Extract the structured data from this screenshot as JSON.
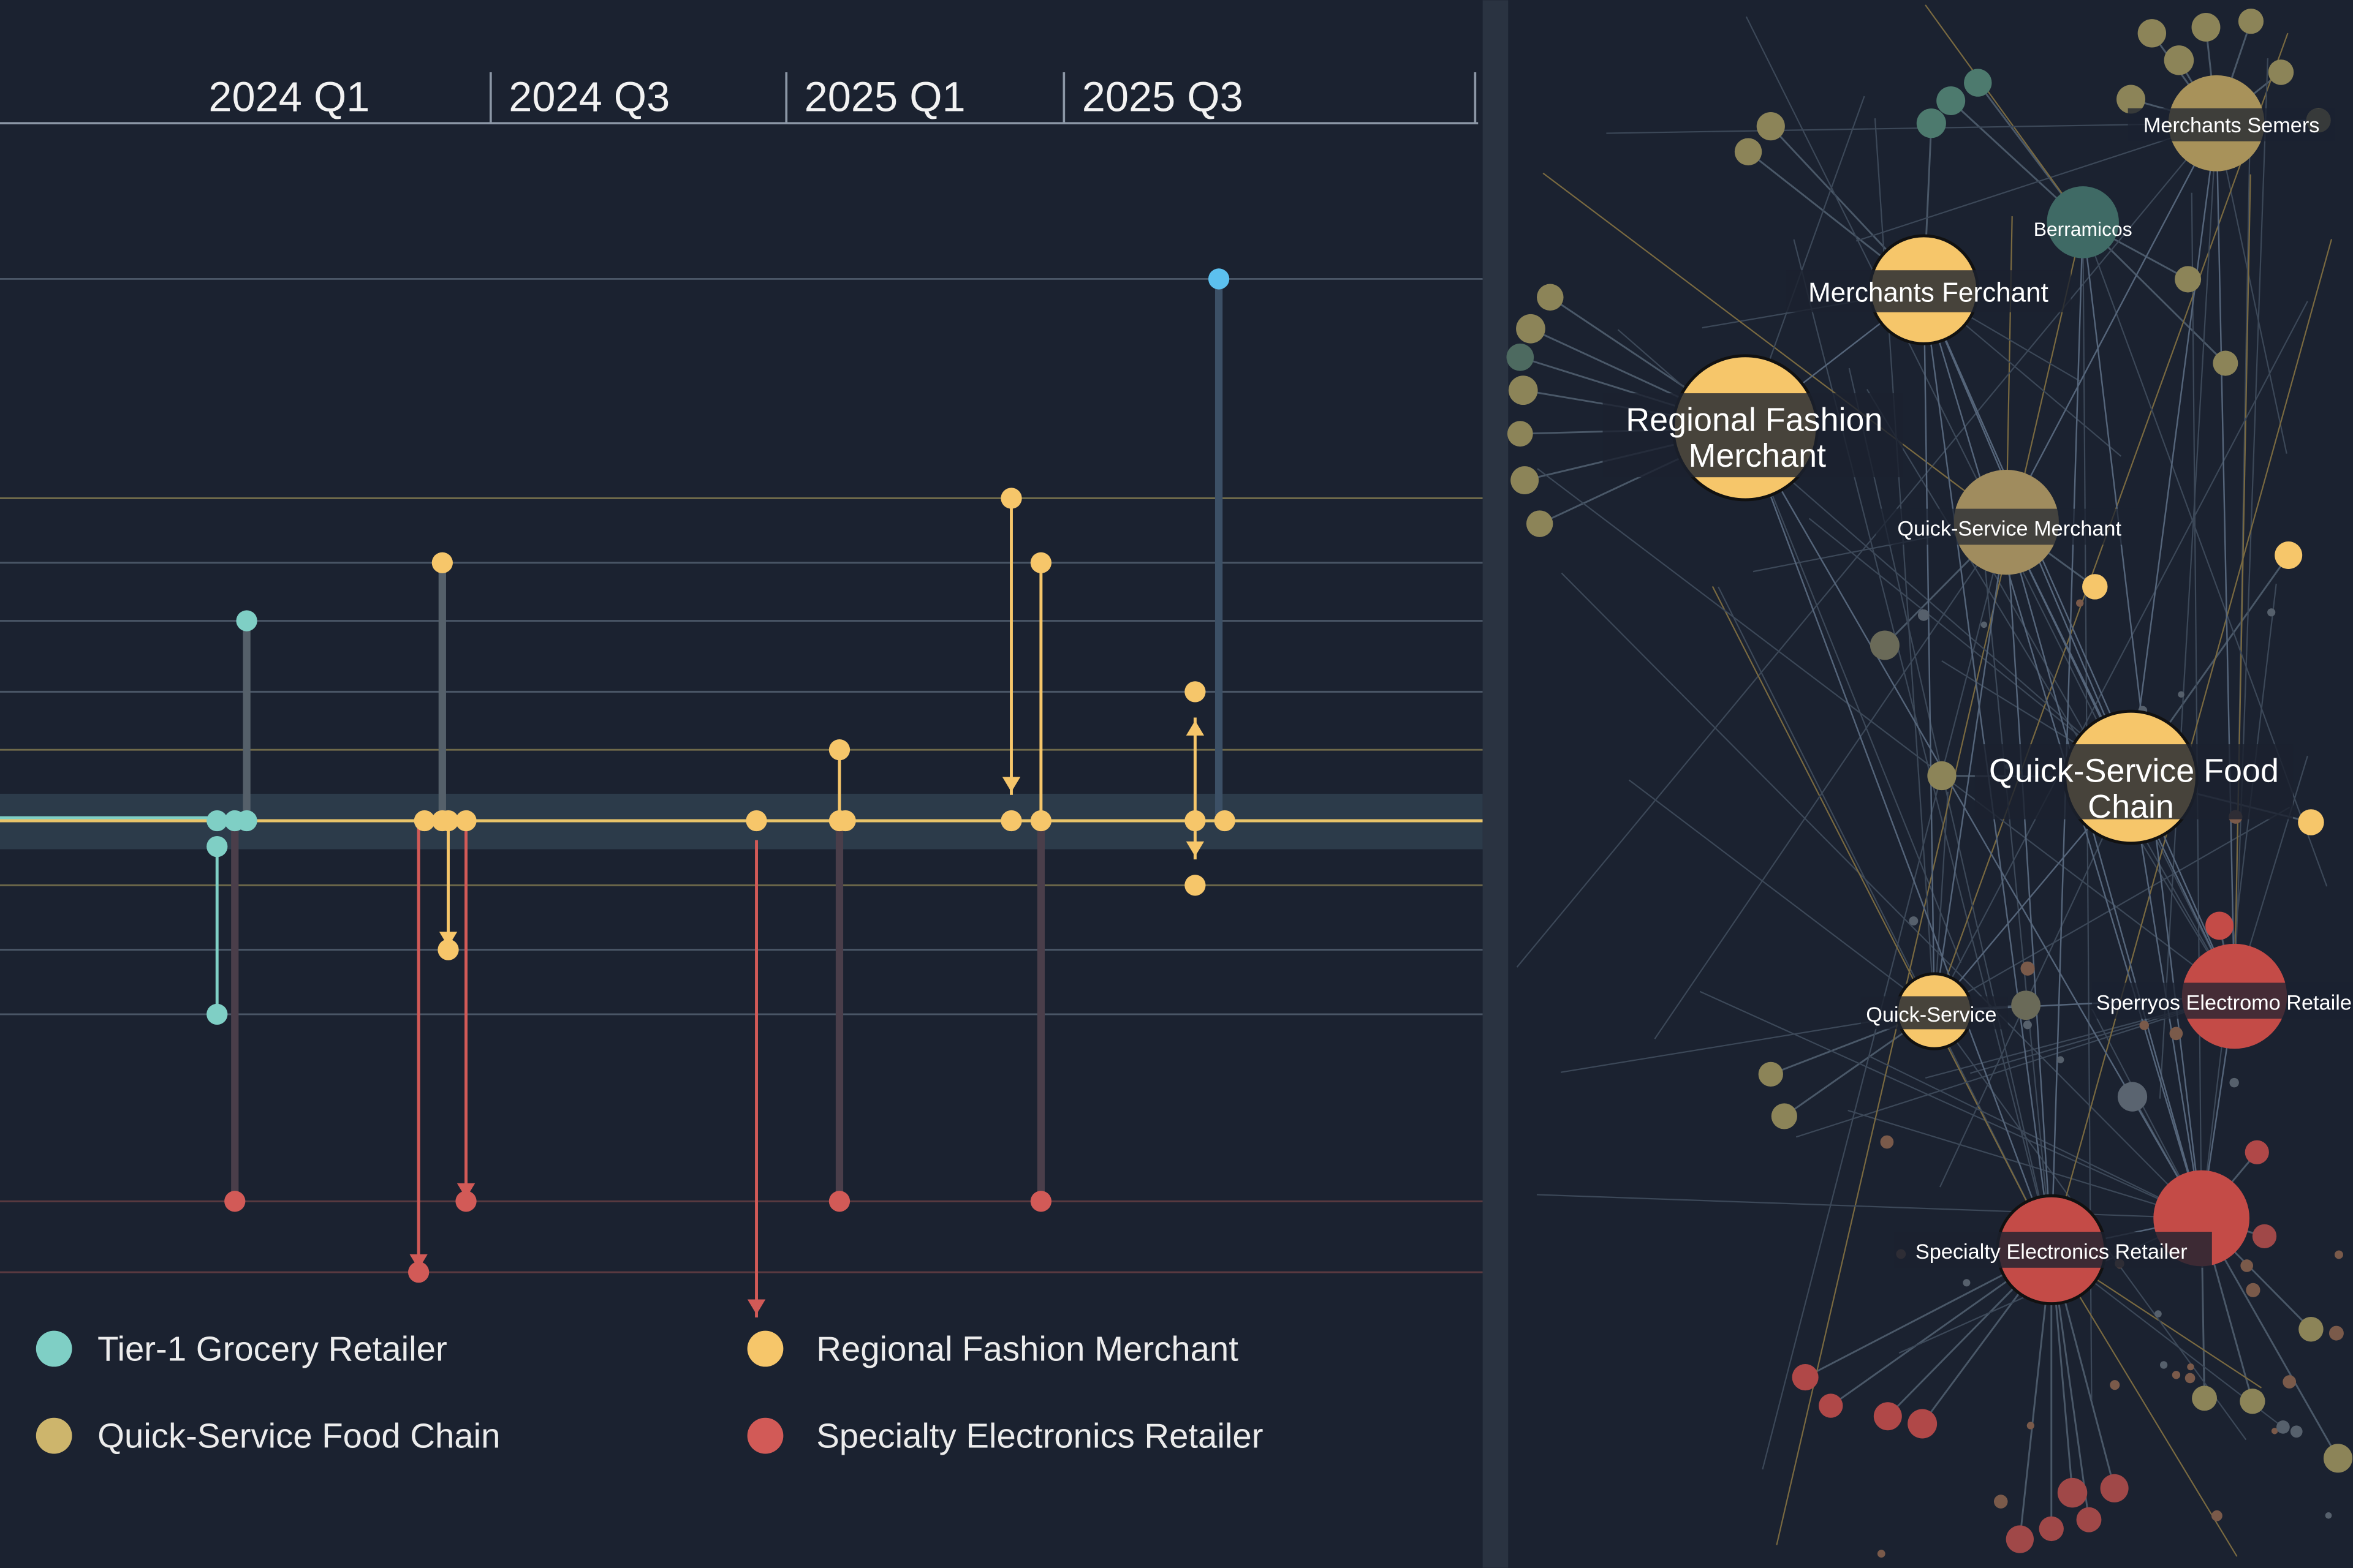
{
  "chart_data": {
    "type": "timeline-lollipop",
    "time_ticks": [
      "2024 Q1",
      "2024 Q3",
      "2025 Q1",
      "2025 Q3"
    ],
    "tick_times": [
      2024.0,
      2024.5,
      2025.0,
      2025.5
    ],
    "baseline": 0,
    "gridlines": [
      {
        "value": 8.4,
        "tone": "gray"
      },
      {
        "value": 5.0,
        "tone": "olive"
      },
      {
        "value": 4.0,
        "tone": "gray"
      },
      {
        "value": 3.1,
        "tone": "gray"
      },
      {
        "value": 2.0,
        "tone": "gray"
      },
      {
        "value": 1.1,
        "tone": "olive"
      },
      {
        "value": -1.0,
        "tone": "olive"
      },
      {
        "value": -2.0,
        "tone": "gray"
      },
      {
        "value": -3.0,
        "tone": "gray"
      },
      {
        "value": -5.9,
        "tone": "red"
      },
      {
        "value": -7.0,
        "tone": "red"
      }
    ],
    "stems": [
      {
        "series": "Tier-1 Grocery Retailer",
        "t": 2023.92,
        "from": 0,
        "to": 3.1,
        "arrow": false,
        "muted": true
      },
      {
        "series": "Tier-1 Grocery Retailer",
        "t": 2023.87,
        "from": -0.4,
        "to": -3.0,
        "arrow": false,
        "muted": false
      },
      {
        "series": "Specialty Electronics Retailer",
        "t": 2023.9,
        "from": 0,
        "to": -5.9,
        "arrow": false,
        "muted": true
      },
      {
        "series": "Regional Fashion Merchant",
        "t": 2024.25,
        "from": 0,
        "to": 4.0,
        "arrow": false,
        "muted": true
      },
      {
        "series": "Specialty Electronics Retailer",
        "t": 2024.21,
        "from": 0,
        "to": -7.0,
        "arrow": true,
        "muted": false
      },
      {
        "series": "Regional Fashion Merchant",
        "t": 2024.26,
        "from": 0,
        "to": -2.0,
        "arrow": true,
        "muted": false
      },
      {
        "series": "Specialty Electronics Retailer",
        "t": 2024.29,
        "from": 0,
        "to": -5.9,
        "arrow": true,
        "muted": false
      },
      {
        "series": "Specialty Electronics Retailer",
        "t": 2024.78,
        "from": -0.3,
        "to": -7.7,
        "arrow": true,
        "muted": false
      },
      {
        "series": "Regional Fashion Merchant",
        "t": 2024.92,
        "from": 0,
        "to": 1.1,
        "arrow": false,
        "muted": false
      },
      {
        "series": "Specialty Electronics Retailer",
        "t": 2024.92,
        "from": 0,
        "to": -5.9,
        "arrow": false,
        "muted": true
      },
      {
        "series": "Regional Fashion Merchant",
        "t": 2025.21,
        "from": 5.0,
        "to": 0.4,
        "arrow": true,
        "muted": false
      },
      {
        "series": "Regional Fashion Merchant",
        "t": 2025.26,
        "from": 0,
        "to": 4.0,
        "arrow": false,
        "muted": false
      },
      {
        "series": "Specialty Electronics Retailer",
        "t": 2025.26,
        "from": 0,
        "to": -5.9,
        "arrow": false,
        "muted": true
      },
      {
        "series": "Regional Fashion Merchant",
        "t": 2025.52,
        "from": 0,
        "to": 1.6,
        "arrow": true,
        "muted": false
      },
      {
        "series": "Regional Fashion Merchant",
        "t": 2025.52,
        "from": 0,
        "to": -0.6,
        "arrow": true,
        "muted": false
      },
      {
        "series": "Highlight",
        "t": 2025.56,
        "from": 0,
        "to": 8.4,
        "arrow": false,
        "muted": true
      }
    ],
    "points": [
      {
        "series": "Tier-1 Grocery Retailer",
        "t": 2023.92,
        "value": 3.1
      },
      {
        "series": "Tier-1 Grocery Retailer",
        "t": 2023.87,
        "value": 0
      },
      {
        "series": "Tier-1 Grocery Retailer",
        "t": 2023.9,
        "value": 0
      },
      {
        "series": "Tier-1 Grocery Retailer",
        "t": 2023.92,
        "value": 0
      },
      {
        "series": "Tier-1 Grocery Retailer",
        "t": 2023.87,
        "value": -0.4
      },
      {
        "series": "Tier-1 Grocery Retailer",
        "t": 2023.87,
        "value": -3.0
      },
      {
        "series": "Specialty Electronics Retailer",
        "t": 2023.9,
        "value": -5.9
      },
      {
        "series": "Regional Fashion Merchant",
        "t": 2024.25,
        "value": 4.0
      },
      {
        "series": "Regional Fashion Merchant",
        "t": 2024.22,
        "value": 0
      },
      {
        "series": "Regional Fashion Merchant",
        "t": 2024.25,
        "value": 0
      },
      {
        "series": "Regional Fashion Merchant",
        "t": 2024.26,
        "value": 0
      },
      {
        "series": "Regional Fashion Merchant",
        "t": 2024.29,
        "value": 0
      },
      {
        "series": "Regional Fashion Merchant",
        "t": 2024.26,
        "value": -2.0
      },
      {
        "series": "Specialty Electronics Retailer",
        "t": 2024.21,
        "value": -7.0
      },
      {
        "series": "Specialty Electronics Retailer",
        "t": 2024.29,
        "value": -5.9
      },
      {
        "series": "Regional Fashion Merchant",
        "t": 2024.78,
        "value": 0
      },
      {
        "series": "Regional Fashion Merchant",
        "t": 2024.92,
        "value": 1.1
      },
      {
        "series": "Regional Fashion Merchant",
        "t": 2024.92,
        "value": 0
      },
      {
        "series": "Regional Fashion Merchant",
        "t": 2024.93,
        "value": 0
      },
      {
        "series": "Specialty Electronics Retailer",
        "t": 2024.92,
        "value": -5.9
      },
      {
        "series": "Regional Fashion Merchant",
        "t": 2025.21,
        "value": 5.0
      },
      {
        "series": "Regional Fashion Merchant",
        "t": 2025.21,
        "value": 0
      },
      {
        "series": "Regional Fashion Merchant",
        "t": 2025.26,
        "value": 0
      },
      {
        "series": "Regional Fashion Merchant",
        "t": 2025.26,
        "value": 4.0
      },
      {
        "series": "Specialty Electronics Retailer",
        "t": 2025.26,
        "value": -5.9
      },
      {
        "series": "Regional Fashion Merchant",
        "t": 2025.52,
        "value": 2.0
      },
      {
        "series": "Regional Fashion Merchant",
        "t": 2025.52,
        "value": 0
      },
      {
        "series": "Regional Fashion Merchant",
        "t": 2025.57,
        "value": 0
      },
      {
        "series": "Regional Fashion Merchant",
        "t": 2025.52,
        "value": -1.0
      },
      {
        "series": "Highlight",
        "t": 2025.56,
        "value": 8.4
      }
    ],
    "legend": [
      {
        "name": "Tier-1 Grocery Retailer",
        "color": "#7fcfc5"
      },
      {
        "name": "Regional Fashion Merchant",
        "color": "#f6c66a"
      },
      {
        "name": "Quick-Service Food Chain",
        "color": "#cdb56c"
      },
      {
        "name": "Specialty Electronics Retailer",
        "color": "#d25a57"
      }
    ],
    "legend_position": "bottom",
    "highlight_color": "#5cc0ee"
  },
  "network": {
    "nodes": [
      {
        "label": "Merchants Semers",
        "color": "#a8925a"
      },
      {
        "label": "Berramicos",
        "color": "#3f6a65"
      },
      {
        "label": "Merchants Ferchant",
        "color": "#f6c66a"
      },
      {
        "label_lines": [
          "Regional Fashion",
          "Merchant"
        ],
        "color": "#f6c66a"
      },
      {
        "label": "Quick-Service Merchant",
        "color": "#a08c5e"
      },
      {
        "label_lines": [
          "Quick-Service Food",
          "Chain"
        ],
        "color": "#f6c66a"
      },
      {
        "label": "Quick-Service",
        "color": "#f6c66a"
      },
      {
        "label": "Sperryos Electromo Retaile",
        "color": "#c44b47"
      },
      {
        "label": "Specialty Electronics Retailer",
        "color": "#c44b47"
      }
    ]
  },
  "colors": {
    "background": "#1b2230",
    "divider": "#2a3341",
    "baseline_band": "#2c3b4a"
  }
}
